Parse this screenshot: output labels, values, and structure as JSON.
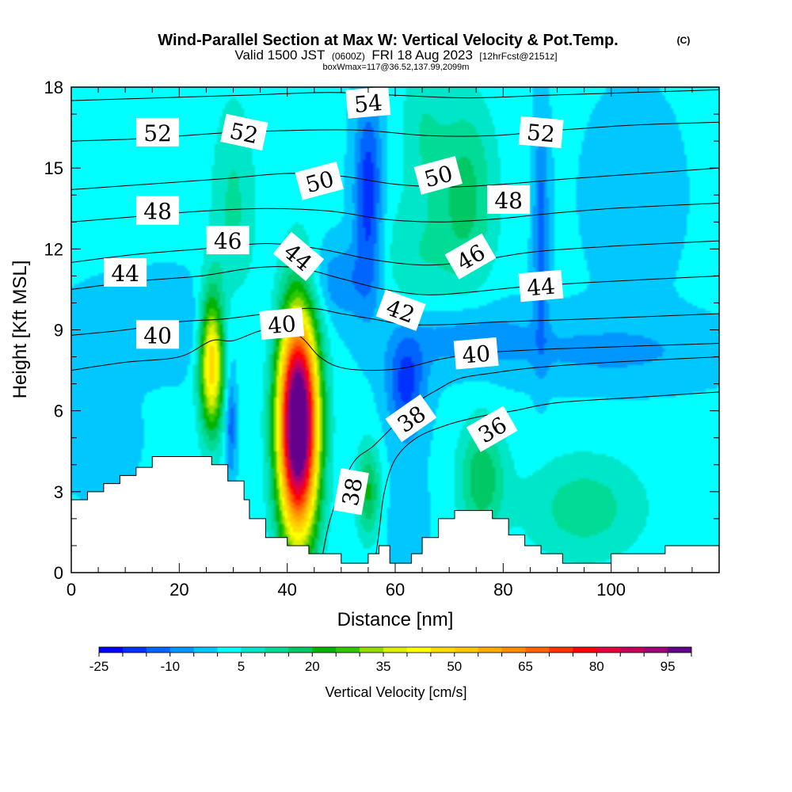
{
  "chart_data": {
    "type": "heatmap",
    "title": "Wind-Parallel Section at Max W: Vertical Velocity & Pot.Temp.",
    "copyright": "(C)",
    "subtitle_valid": "Valid 1500 JST",
    "subtitle_utc": "(0600Z)",
    "subtitle_date": "FRI 18 Aug 2023",
    "subtitle_fcst": "[12hrFcst@2151z]",
    "subtitle_box": "boxWmax=117@36.52,137.99,2099m",
    "xlabel": "Distance [nm]",
    "ylabel": "Height [Kft MSL]",
    "xlim": [
      0,
      120
    ],
    "ylim": [
      0,
      18
    ],
    "xticks": [
      "0",
      "20",
      "40",
      "60",
      "80",
      "100"
    ],
    "xtick_values": [
      0,
      20,
      40,
      60,
      80,
      100
    ],
    "yticks": [
      "0",
      "3",
      "6",
      "9",
      "12",
      "15",
      "18"
    ],
    "ytick_values": [
      0,
      3,
      6,
      9,
      12,
      15,
      18
    ],
    "colorbar": {
      "label": "Vertical Velocity [cm/s]",
      "tick_labels": [
        "-25",
        "-10",
        "5",
        "20",
        "35",
        "50",
        "65",
        "80",
        "95"
      ],
      "bins": [
        -25,
        -20,
        -15,
        -10,
        -5,
        0,
        5,
        10,
        15,
        20,
        25,
        30,
        35,
        40,
        45,
        50,
        55,
        60,
        65,
        70,
        75,
        80,
        85,
        90,
        95
      ],
      "colors": [
        "#0000ff",
        "#0032ff",
        "#0064ff",
        "#0096ff",
        "#00c8ff",
        "#00ffff",
        "#00e6c8",
        "#00dc96",
        "#00c864",
        "#00b400",
        "#32c800",
        "#96dc00",
        "#dcf000",
        "#ffff00",
        "#ffdc00",
        "#ffc800",
        "#ffaa00",
        "#ff8c00",
        "#ff6400",
        "#ff3200",
        "#ff0000",
        "#e6003c",
        "#c8005a",
        "#a00078",
        "#64008c"
      ]
    },
    "theta_contours": [
      {
        "level": 36,
        "points": [
          [
            56,
            0
          ],
          [
            57,
            1.5
          ],
          [
            58,
            3
          ],
          [
            60,
            4.2
          ],
          [
            64,
            5
          ],
          [
            70,
            5.5
          ],
          [
            76,
            5.8
          ],
          [
            82,
            6
          ],
          [
            90,
            6.3
          ],
          [
            105,
            6.5
          ],
          [
            120,
            6.7
          ]
        ]
      },
      {
        "level": 38,
        "points": [
          [
            46,
            0
          ],
          [
            48,
            2
          ],
          [
            52,
            4
          ],
          [
            56,
            4.7
          ],
          [
            60,
            5.5
          ],
          [
            64,
            6.3
          ],
          [
            68,
            6.8
          ],
          [
            72,
            7.2
          ],
          [
            78,
            7.4
          ],
          [
            86,
            7.6
          ],
          [
            100,
            7.8
          ],
          [
            120,
            8
          ]
        ]
      },
      {
        "level": 40,
        "points": [
          [
            0,
            7.5
          ],
          [
            10,
            7.8
          ],
          [
            20,
            8
          ],
          [
            26,
            8.6
          ],
          [
            30,
            8.6
          ],
          [
            36,
            9
          ],
          [
            42,
            8.8
          ],
          [
            46,
            8
          ],
          [
            50,
            7.6
          ],
          [
            56,
            7.5
          ],
          [
            62,
            7.6
          ],
          [
            68,
            7.9
          ],
          [
            74,
            8.1
          ],
          [
            80,
            8.2
          ],
          [
            90,
            8.3
          ],
          [
            105,
            8.4
          ],
          [
            120,
            8.5
          ]
        ]
      },
      {
        "level": 42,
        "points": [
          [
            0,
            8.8
          ],
          [
            10,
            9
          ],
          [
            20,
            9.3
          ],
          [
            28,
            9.4
          ],
          [
            36,
            9.6
          ],
          [
            44,
            9.8
          ],
          [
            50,
            9.6
          ],
          [
            56,
            9.4
          ],
          [
            62,
            9.2
          ],
          [
            70,
            9.2
          ],
          [
            80,
            9.3
          ],
          [
            95,
            9.4
          ],
          [
            120,
            9.6
          ]
        ]
      },
      {
        "level": 44,
        "points": [
          [
            0,
            10.5
          ],
          [
            12,
            10.8
          ],
          [
            24,
            11
          ],
          [
            34,
            11.3
          ],
          [
            42,
            11.3
          ],
          [
            50,
            10.9
          ],
          [
            58,
            10.5
          ],
          [
            66,
            10.3
          ],
          [
            74,
            10.4
          ],
          [
            84,
            10.6
          ],
          [
            100,
            10.8
          ],
          [
            120,
            11
          ]
        ]
      },
      {
        "level": 46,
        "points": [
          [
            0,
            11.5
          ],
          [
            12,
            11.8
          ],
          [
            24,
            12
          ],
          [
            36,
            12.2
          ],
          [
            46,
            12
          ],
          [
            56,
            11.6
          ],
          [
            66,
            11.4
          ],
          [
            76,
            11.6
          ],
          [
            86,
            11.9
          ],
          [
            100,
            12.1
          ],
          [
            120,
            12.3
          ]
        ]
      },
      {
        "level": 48,
        "points": [
          [
            0,
            13
          ],
          [
            12,
            13.2
          ],
          [
            24,
            13.4
          ],
          [
            36,
            13.5
          ],
          [
            48,
            13.4
          ],
          [
            58,
            13.1
          ],
          [
            68,
            13
          ],
          [
            78,
            13.1
          ],
          [
            88,
            13.3
          ],
          [
            100,
            13.5
          ],
          [
            120,
            13.7
          ]
        ]
      },
      {
        "level": 50,
        "points": [
          [
            0,
            14.2
          ],
          [
            14,
            14.4
          ],
          [
            28,
            14.6
          ],
          [
            40,
            14.8
          ],
          [
            50,
            14.7
          ],
          [
            60,
            14.4
          ],
          [
            70,
            14.3
          ],
          [
            80,
            14.4
          ],
          [
            92,
            14.6
          ],
          [
            106,
            14.8
          ],
          [
            120,
            15
          ]
        ]
      },
      {
        "level": 52,
        "points": [
          [
            0,
            16
          ],
          [
            14,
            16.1
          ],
          [
            28,
            16.3
          ],
          [
            42,
            16.4
          ],
          [
            54,
            16.4
          ],
          [
            66,
            16.2
          ],
          [
            78,
            16.2
          ],
          [
            90,
            16.4
          ],
          [
            105,
            16.6
          ],
          [
            120,
            16.7
          ]
        ]
      },
      {
        "level": 54,
        "points": [
          [
            0,
            17.5
          ],
          [
            16,
            17.6
          ],
          [
            32,
            17.7
          ],
          [
            48,
            17.8
          ],
          [
            60,
            17.7
          ],
          [
            74,
            17.6
          ],
          [
            88,
            17.7
          ],
          [
            104,
            17.8
          ],
          [
            120,
            17.9
          ]
        ]
      }
    ],
    "contour_labels": [
      {
        "text": "52",
        "x": 16,
        "y": 16.3,
        "angle": 0
      },
      {
        "text": "52",
        "x": 32,
        "y": 16.3,
        "angle": 12
      },
      {
        "text": "54",
        "x": 55,
        "y": 17.4,
        "angle": -5
      },
      {
        "text": "52",
        "x": 87,
        "y": 16.3,
        "angle": 5
      },
      {
        "text": "50",
        "x": 46,
        "y": 14.5,
        "angle": -15
      },
      {
        "text": "50",
        "x": 68,
        "y": 14.7,
        "angle": -15
      },
      {
        "text": "48",
        "x": 16,
        "y": 13.4,
        "angle": 0
      },
      {
        "text": "48",
        "x": 81,
        "y": 13.8,
        "angle": 0
      },
      {
        "text": "46",
        "x": 29,
        "y": 12.3,
        "angle": 0
      },
      {
        "text": "44",
        "x": 42,
        "y": 11.7,
        "angle": 40
      },
      {
        "text": "46",
        "x": 74,
        "y": 11.7,
        "angle": -30
      },
      {
        "text": "44",
        "x": 10,
        "y": 11.1,
        "angle": 0
      },
      {
        "text": "44",
        "x": 87,
        "y": 10.6,
        "angle": -5
      },
      {
        "text": "42",
        "x": 61,
        "y": 9.7,
        "angle": 20
      },
      {
        "text": "40",
        "x": 16,
        "y": 8.8,
        "angle": 0
      },
      {
        "text": "40",
        "x": 39,
        "y": 9.2,
        "angle": -5
      },
      {
        "text": "40",
        "x": 75,
        "y": 8.1,
        "angle": -5
      },
      {
        "text": "38",
        "x": 63,
        "y": 5.7,
        "angle": -35
      },
      {
        "text": "36",
        "x": 78,
        "y": 5.3,
        "angle": -30
      },
      {
        "text": "38",
        "x": 52,
        "y": 3.0,
        "angle": -80
      }
    ],
    "terrain_kft": [
      [
        0,
        2.7
      ],
      [
        3,
        2.7
      ],
      [
        3,
        3.0
      ],
      [
        6,
        3.0
      ],
      [
        6,
        3.3
      ],
      [
        9,
        3.3
      ],
      [
        9,
        3.6
      ],
      [
        12,
        3.6
      ],
      [
        12,
        3.9
      ],
      [
        15,
        3.9
      ],
      [
        15,
        4.3
      ],
      [
        26,
        4.3
      ],
      [
        26,
        4.0
      ],
      [
        29,
        4.0
      ],
      [
        29,
        3.4
      ],
      [
        32,
        3.4
      ],
      [
        32,
        2.7
      ],
      [
        33,
        2.7
      ],
      [
        33,
        2.0
      ],
      [
        36,
        2.0
      ],
      [
        36,
        1.3
      ],
      [
        40,
        1.3
      ],
      [
        40,
        1.0
      ],
      [
        44,
        1.0
      ],
      [
        44,
        0.7
      ],
      [
        50,
        0.7
      ],
      [
        50,
        0.35
      ],
      [
        55,
        0.35
      ],
      [
        55,
        0.7
      ],
      [
        57,
        0.7
      ],
      [
        57,
        1.0
      ],
      [
        59,
        1.0
      ],
      [
        59,
        0.35
      ],
      [
        63,
        0.35
      ],
      [
        63,
        0.7
      ],
      [
        65,
        0.7
      ],
      [
        65,
        1.3
      ],
      [
        68,
        1.3
      ],
      [
        68,
        2.0
      ],
      [
        71,
        2.0
      ],
      [
        71,
        2.3
      ],
      [
        78,
        2.3
      ],
      [
        78,
        2.0
      ],
      [
        81,
        2.0
      ],
      [
        81,
        1.4
      ],
      [
        84,
        1.4
      ],
      [
        84,
        1.0
      ],
      [
        87,
        1.0
      ],
      [
        87,
        0.7
      ],
      [
        91,
        0.7
      ],
      [
        91,
        0.35
      ],
      [
        100,
        0.35
      ],
      [
        100,
        0.7
      ],
      [
        110,
        0.7
      ],
      [
        110,
        1.0
      ],
      [
        120,
        1.0
      ]
    ],
    "w_field": {
      "background_cm_s": 1,
      "features": [
        {
          "x": 42,
          "y": 5.5,
          "sx": 2.6,
          "sy": 2.9,
          "amp": 117
        },
        {
          "x": 26,
          "y": 7.8,
          "sx": 1.6,
          "sy": 1.8,
          "amp": 50
        },
        {
          "x": 55,
          "y": 3.0,
          "sx": 1.6,
          "sy": 1.2,
          "amp": 20
        },
        {
          "x": 76,
          "y": 3.5,
          "sx": 3.0,
          "sy": 1.5,
          "amp": 18
        },
        {
          "x": 95,
          "y": 2.4,
          "sx": 8.0,
          "sy": 1.4,
          "amp": 12
        },
        {
          "x": 73,
          "y": 14.0,
          "sx": 4.0,
          "sy": 2.5,
          "amp": 16
        },
        {
          "x": 63,
          "y": 11.5,
          "sx": 5.0,
          "sy": 1.6,
          "amp": 8
        },
        {
          "x": 30,
          "y": 13.5,
          "sx": 3.0,
          "sy": 3.0,
          "amp": 10
        },
        {
          "x": 55,
          "y": 14.0,
          "sx": 1.8,
          "sy": 2.5,
          "amp": -20
        },
        {
          "x": 62,
          "y": 7.0,
          "sx": 2.5,
          "sy": 1.3,
          "amp": -18
        },
        {
          "x": 29.5,
          "y": 5.6,
          "sx": 0.7,
          "sy": 1.4,
          "amp": -15
        },
        {
          "x": 87,
          "y": 12.5,
          "sx": 1.0,
          "sy": 3.0,
          "amp": -14
        },
        {
          "x": 50,
          "y": 10.8,
          "sx": 5.0,
          "sy": 1.0,
          "amp": -10
        },
        {
          "x": 72,
          "y": 8.8,
          "sx": 9.0,
          "sy": 0.9,
          "amp": -9
        },
        {
          "x": 18,
          "y": 9.2,
          "sx": 12.0,
          "sy": 1.2,
          "amp": -6
        },
        {
          "x": 100,
          "y": 8.2,
          "sx": 15.0,
          "sy": 0.9,
          "amp": -7
        },
        {
          "x": 62,
          "y": 2.2,
          "sx": 2.5,
          "sy": 1.8,
          "amp": -5
        },
        {
          "x": 5,
          "y": 5.0,
          "sx": 5.0,
          "sy": 1.5,
          "amp": -4
        },
        {
          "x": 65,
          "y": 16.5,
          "sx": 3.0,
          "sy": 2.0,
          "amp": 8
        },
        {
          "x": 104,
          "y": 14.0,
          "sx": 7.0,
          "sy": 3.0,
          "amp": -3
        }
      ]
    }
  }
}
